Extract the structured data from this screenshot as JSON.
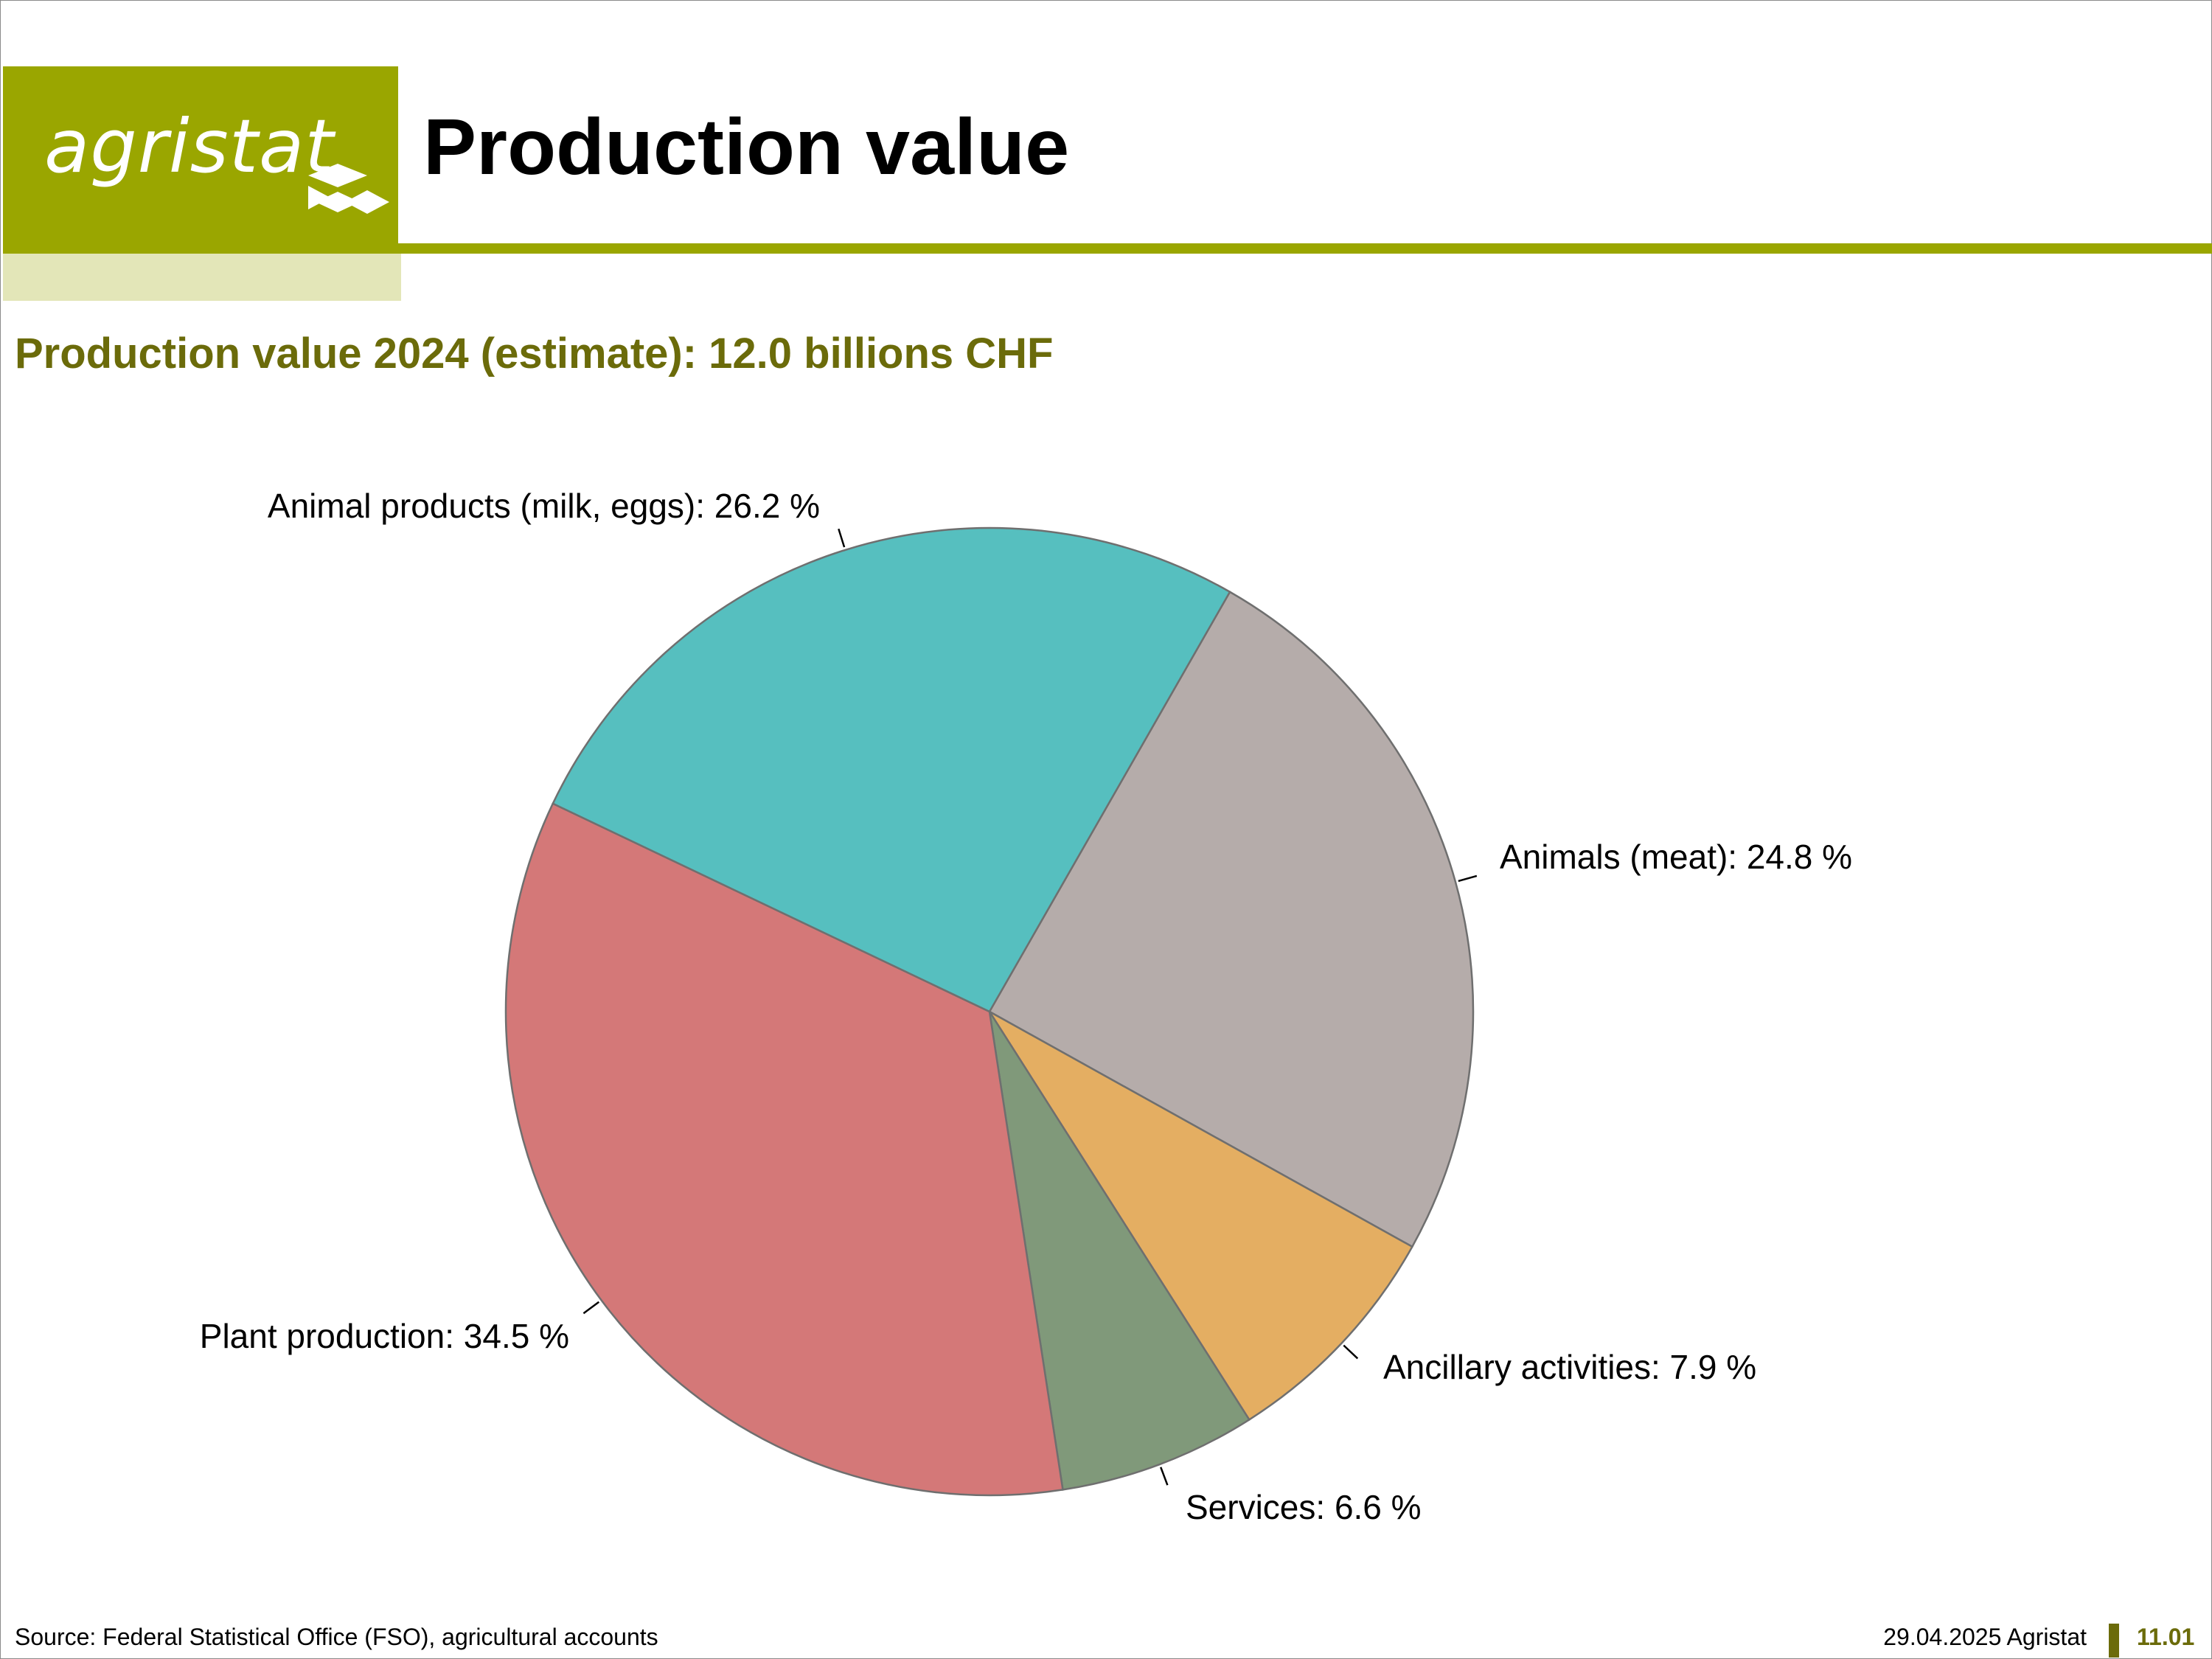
{
  "header": {
    "logo_text": "agristat",
    "title": "Production value"
  },
  "subtitle": "Production value 2024 (estimate): 12.0 billions CHF",
  "chart_data": {
    "type": "pie",
    "title": "Production value 2024 (estimate): 12.0 billions CHF",
    "unit": "%",
    "slices": [
      {
        "label": "Animals (meat): 24.8 %",
        "name": "Animals (meat)",
        "value": 24.8,
        "color": "#b5acaa"
      },
      {
        "label": "Ancillary activities: 7.9 %",
        "name": "Ancillary activities",
        "value": 7.9,
        "color": "#e4ae62"
      },
      {
        "label": "Services: 6.6 %",
        "name": "Services",
        "value": 6.6,
        "color": "#80997a"
      },
      {
        "label": "Plant production: 34.5 %",
        "name": "Plant production",
        "value": 34.5,
        "color": "#d47878"
      },
      {
        "label": "Animal products (milk, eggs): 26.2 %",
        "name": "Animal products (milk, eggs)",
        "value": 26.2,
        "color": "#56bfbf"
      }
    ],
    "start_angle_deg": -60.2,
    "direction": "clockwise",
    "legend": "none"
  },
  "footer": {
    "source": "Source: Federal Statistical Office (FSO), agricultural accounts",
    "date_org": "29.04.2025 Agristat",
    "page": "11.01"
  },
  "colors": {
    "brand_green": "#9aa600",
    "brand_light": "#e3e6b8",
    "heading_olive": "#6b6b0a"
  }
}
